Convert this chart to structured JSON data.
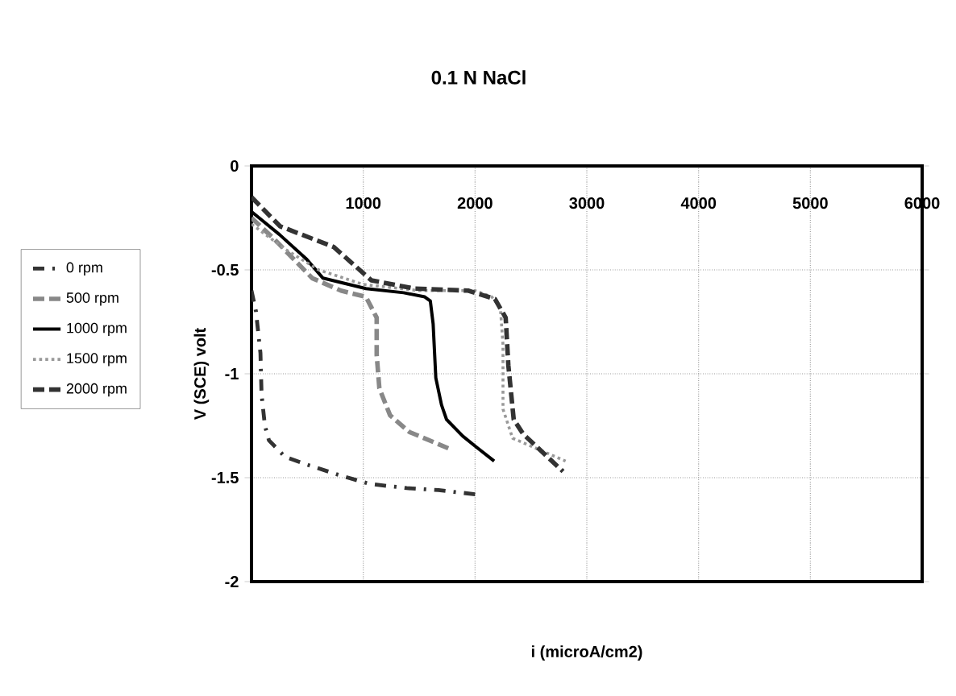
{
  "chart_data": {
    "type": "line",
    "title": "0.1 N NaCl",
    "xlabel": "i (microA/cm2)",
    "ylabel": "V (SCE) volt",
    "xlim": [
      0,
      6000
    ],
    "ylim": [
      -2,
      0
    ],
    "xticks": [
      1000,
      2000,
      3000,
      4000,
      5000,
      6000
    ],
    "yticks": [
      0,
      -0.5,
      -1,
      -1.5,
      -2
    ],
    "grid": true,
    "legend": "left",
    "series": [
      {
        "name": "0 rpm",
        "color": "#333333",
        "line_style": "dashdot",
        "x": [
          0,
          40,
          80,
          90,
          120,
          156,
          300,
          512,
          800,
          1057,
          1389,
          1673,
          2005
        ],
        "values": [
          -0.6,
          -0.7,
          -0.9,
          -1.1,
          -1.25,
          -1.32,
          -1.4,
          -1.44,
          -1.49,
          -1.53,
          -1.55,
          -1.56,
          -1.58
        ]
      },
      {
        "name": "500 rpm",
        "color": "#888888",
        "line_style": "dashed",
        "x": [
          0,
          200,
          543,
          800,
          1024,
          1120,
          1120,
          1144,
          1240,
          1412,
          1768
        ],
        "values": [
          -0.25,
          -0.35,
          -0.54,
          -0.6,
          -0.63,
          -0.73,
          -0.91,
          -1.07,
          -1.2,
          -1.28,
          -1.36
        ]
      },
      {
        "name": "1000 rpm",
        "color": "#000000",
        "line_style": "solid",
        "x": [
          0,
          250,
          495,
          640,
          1024,
          1361,
          1550,
          1600,
          1625,
          1649,
          1700,
          1745,
          1890,
          2005,
          2171
        ],
        "values": [
          -0.22,
          -0.33,
          -0.45,
          -0.54,
          -0.59,
          -0.61,
          -0.63,
          -0.65,
          -0.76,
          -1.02,
          -1.15,
          -1.22,
          -1.3,
          -1.35,
          -1.42
        ]
      },
      {
        "name": "1500 rpm",
        "color": "#999999",
        "line_style": "dotted",
        "x": [
          0,
          300,
          600,
          1000,
          1500,
          2000,
          2150,
          2226,
          2250,
          2250,
          2336,
          2810
        ],
        "values": [
          -0.28,
          -0.4,
          -0.5,
          -0.57,
          -0.6,
          -0.6,
          -0.63,
          -0.68,
          -0.86,
          -1.17,
          -1.31,
          -1.42
        ]
      },
      {
        "name": "2000 rpm",
        "color": "#333333",
        "line_style": "dashed",
        "x": [
          0,
          255,
          736,
          1072,
          1457,
          1938,
          2178,
          2274,
          2298,
          2346,
          2431,
          2787
        ],
        "values": [
          -0.15,
          -0.29,
          -0.39,
          -0.55,
          -0.59,
          -0.6,
          -0.64,
          -0.73,
          -0.96,
          -1.22,
          -1.29,
          -1.47
        ]
      }
    ]
  }
}
